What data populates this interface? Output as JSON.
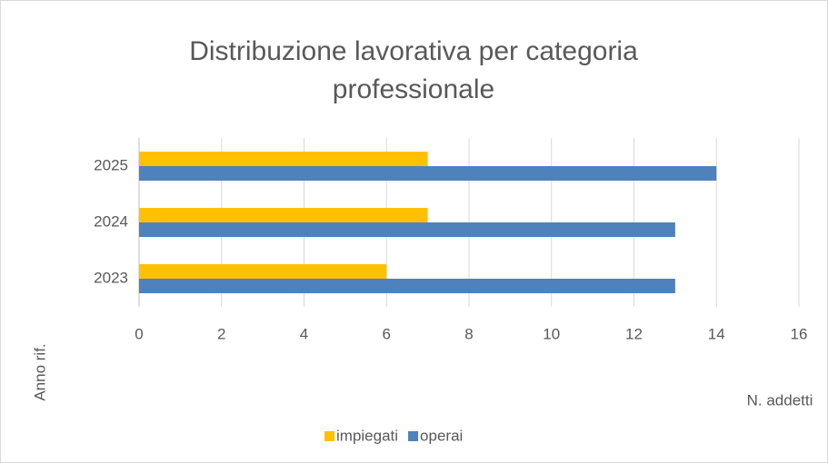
{
  "chart_data": {
    "type": "barh",
    "title": "Distribuzione lavorativa per categoria professionale",
    "x_label": "N. addetti",
    "y_label": "Anno rif.",
    "categories": [
      "2023",
      "2024",
      "2025"
    ],
    "series": [
      {
        "name": "impiegati",
        "color": "#ffc000",
        "values": [
          6,
          7,
          7
        ]
      },
      {
        "name": "operai",
        "color": "#4f81bd",
        "values": [
          13,
          13,
          14
        ]
      }
    ],
    "xlim": [
      0,
      16
    ],
    "xticks": [
      0,
      2,
      4,
      6,
      8,
      10,
      12,
      14,
      16
    ],
    "grid": true,
    "legend": "bottom"
  }
}
